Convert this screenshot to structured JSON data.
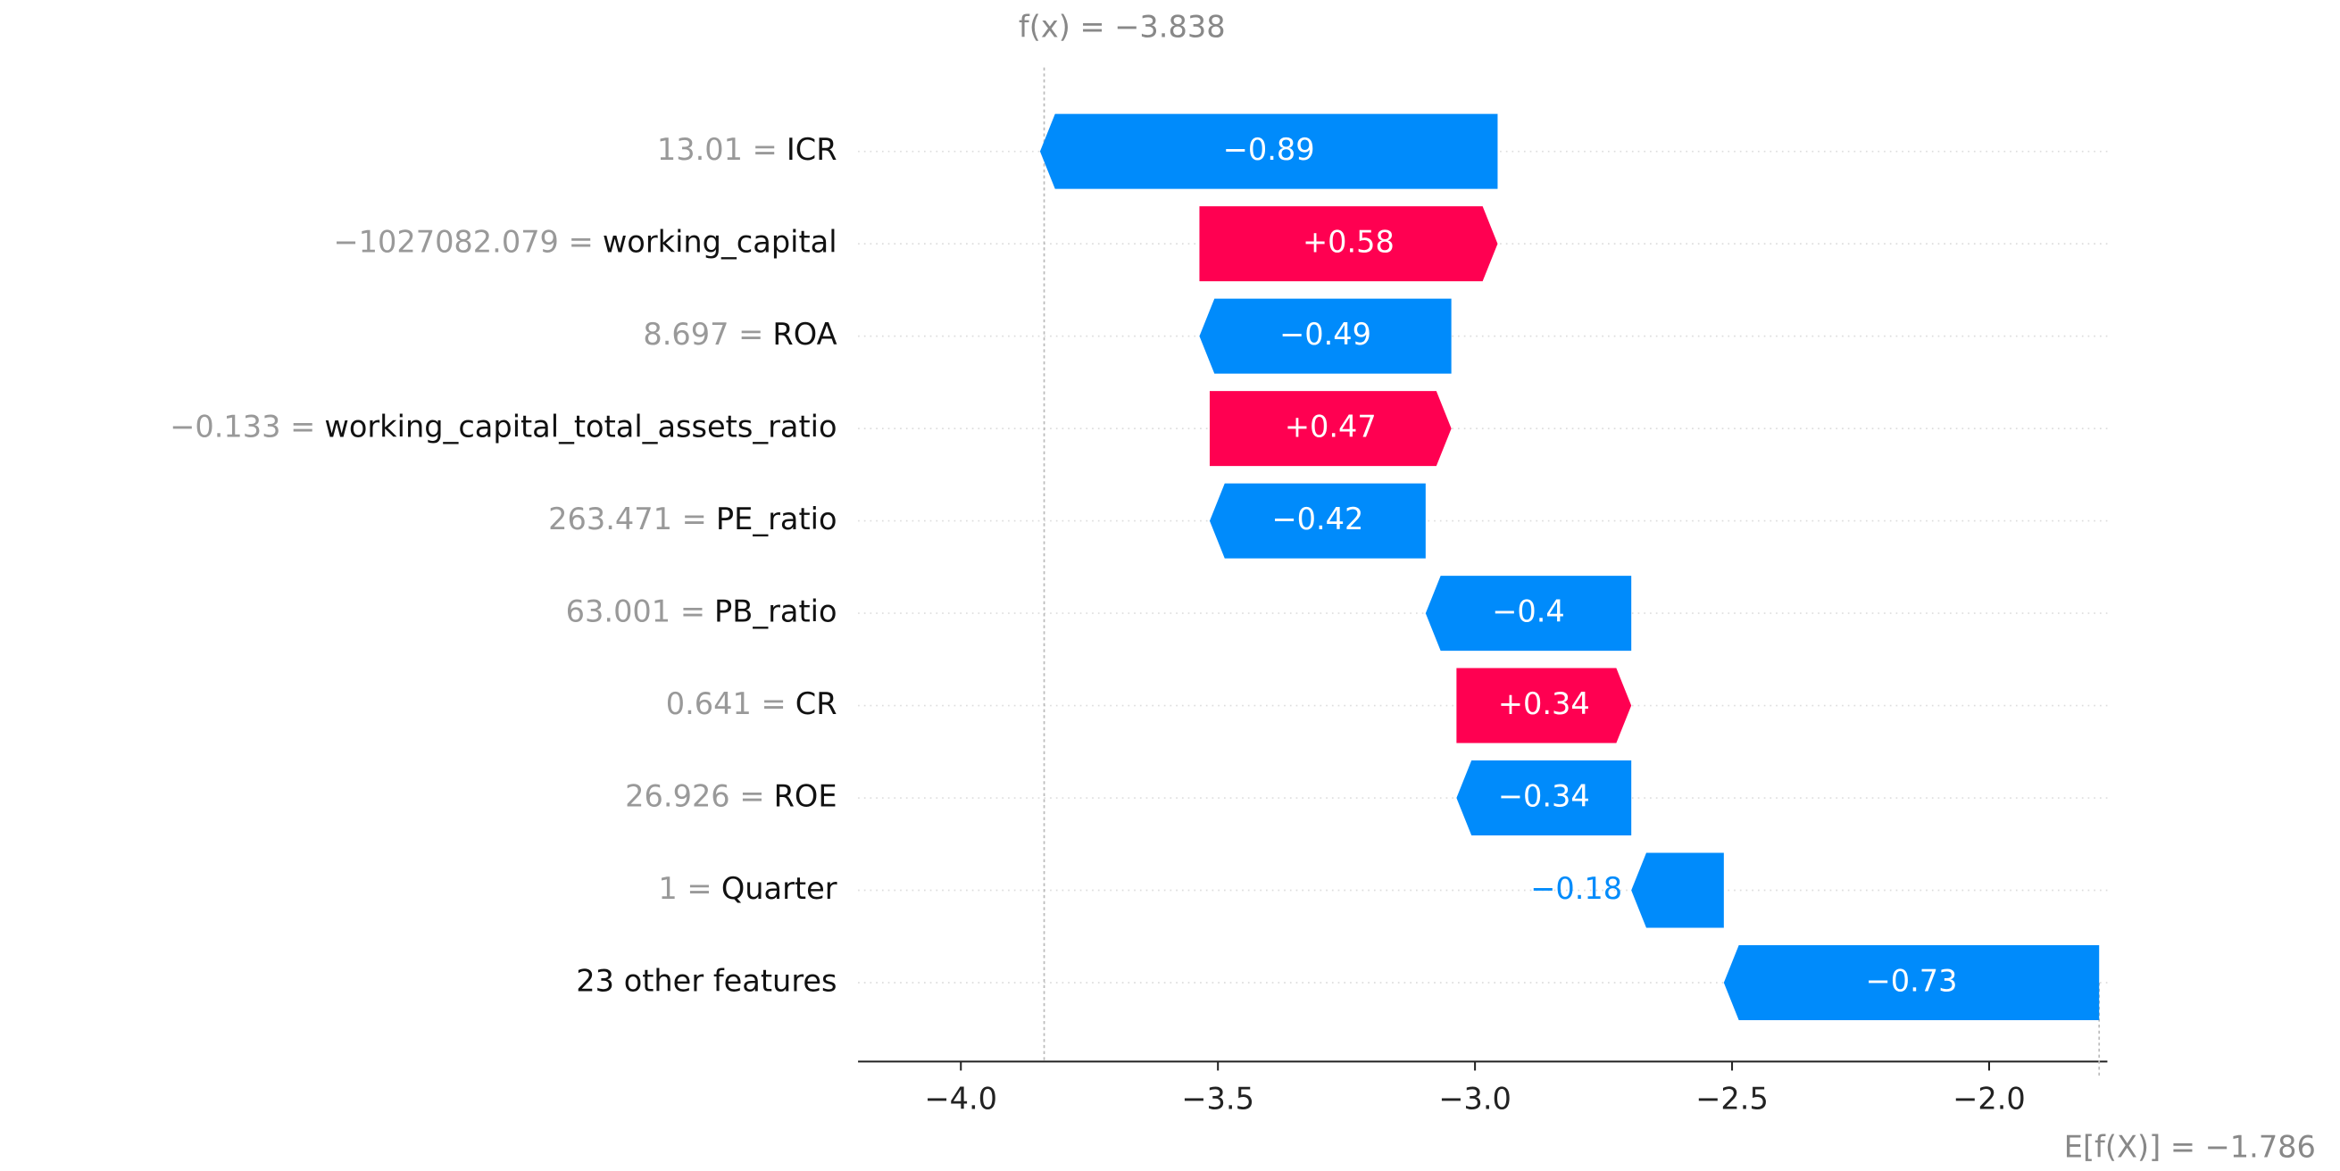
{
  "chart_data": {
    "type": "waterfall",
    "categories": [
      "ICR",
      "working_capital",
      "ROA",
      "working_capital_total_assets_ratio",
      "PE_ratio",
      "PB_ratio",
      "CR",
      "ROE",
      "Quarter",
      "23 other features"
    ],
    "feature_values": [
      "13.01 =",
      "−1027082.079 =",
      "8.697 =",
      "−0.133 =",
      "263.471 =",
      "63.001 =",
      "0.641 =",
      "26.926 =",
      "1 =",
      null
    ],
    "values": [
      -0.89,
      0.58,
      -0.49,
      0.47,
      -0.42,
      -0.4,
      0.34,
      -0.34,
      -0.18,
      -0.73
    ],
    "value_labels": [
      "−0.89",
      "+0.58",
      "−0.49",
      "+0.47",
      "−0.42",
      "−0.4",
      "+0.34",
      "−0.34",
      "−0.18",
      "−0.73"
    ],
    "base_value": {
      "value": -1.786,
      "label": "E[f(X)] = −1.786"
    },
    "output_value": {
      "value": -3.838,
      "label": "f(x) = −3.838"
    },
    "positive_color": "#ff0051",
    "negative_color": "#008bfb",
    "xlim": [
      -4.2,
      -1.77
    ],
    "xticks": [
      {
        "value": -4.0,
        "label": "−4.0"
      },
      {
        "value": -3.5,
        "label": "−3.5"
      },
      {
        "value": -3.0,
        "label": "−3.0"
      },
      {
        "value": -2.5,
        "label": "−2.5"
      },
      {
        "value": -2.0,
        "label": "−2.0"
      }
    ],
    "grid": true
  }
}
